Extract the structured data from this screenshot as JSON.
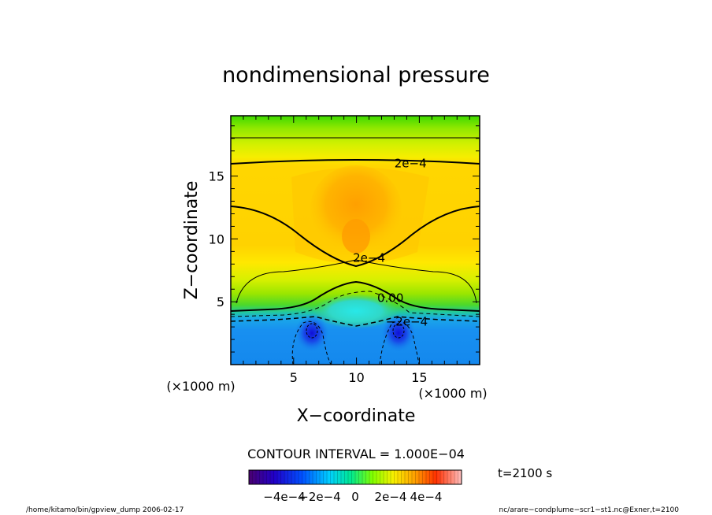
{
  "chart_data": {
    "type": "heatmap",
    "title": "nondimensional pressure",
    "xlabel": "X−coordinate",
    "ylabel": "Z−coordinate",
    "x_unit": "(×1000 m)",
    "y_unit": "(×1000 m)",
    "xlim": [
      0,
      19.8
    ],
    "ylim": [
      0,
      19.8
    ],
    "x_ticks": [
      "5",
      "10",
      "15"
    ],
    "y_ticks": [
      "5",
      "10",
      "15"
    ],
    "x_tick_values": [
      5,
      10,
      15
    ],
    "y_tick_values": [
      5,
      10,
      15
    ],
    "contour_interval": "CONTOUR INTERVAL = 1.000E−04",
    "contour_labels": [
      {
        "text": "2e−4",
        "x": 14.3,
        "z": 16.0
      },
      {
        "text": "2e−4",
        "x": 11.0,
        "z": 8.5
      },
      {
        "text": "0.00",
        "x": 12.7,
        "z": 5.3
      },
      {
        "text": "−2e−4",
        "x": 14.0,
        "z": 3.4
      }
    ],
    "colorbar": {
      "colormap": "rainbow",
      "range": [
        -0.0006,
        0.0006
      ],
      "tick_labels": [
        "−4e−4",
        "−2e−4",
        "0",
        "2e−4",
        "4e−4"
      ],
      "tick_values": [
        -0.0004,
        -0.0002,
        0,
        0.0002,
        0.0004
      ]
    },
    "time": "t=2100 s"
  },
  "footer": {
    "left": "/home/kitamo/bin/gpview_dump  2006-02-17",
    "right": "nc/arare−condplume−scr1−st1.nc@Exner,t=2100"
  }
}
